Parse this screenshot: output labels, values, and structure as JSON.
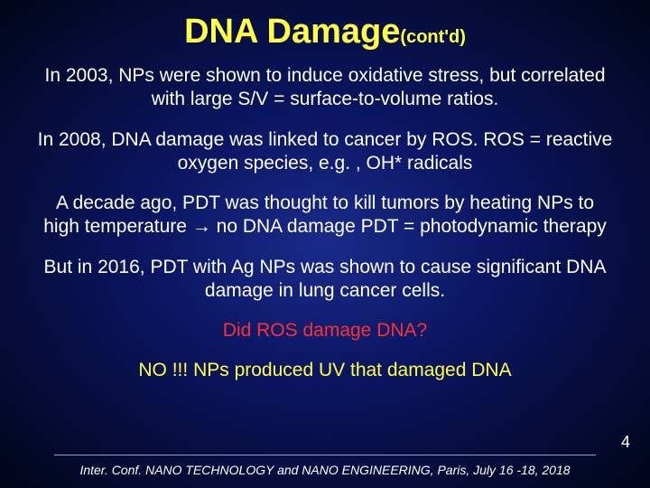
{
  "colors": {
    "background_center": "#1a2a8a",
    "background_mid": "#0a1560",
    "background_edge": "#020518",
    "title": "#ffff4a",
    "body": "#ffffff",
    "accent_red": "#ff3030",
    "accent_yellow": "#ffff4a",
    "divider": "#9aa0c8"
  },
  "fonts": {
    "title_size_pt": 38,
    "title_sub_size_pt": 20,
    "body_size_pt": 21,
    "footer_size_pt": 14,
    "slidenum_size_pt": 18,
    "family": "Arial"
  },
  "title": {
    "main": "DNA Damage",
    "sub": "(cont'd)"
  },
  "paragraphs": {
    "p1": "In 2003, NPs were shown to induce oxidative stress, but correlated with large S/V = surface-to-volume ratios.",
    "p2": "In 2008, DNA damage was linked to  cancer by ROS. ROS = reactive oxygen species, e.g. , OH* radicals",
    "p3": "A decade ago, PDT was thought to kill tumors by heating  NPs to high temperature → no DNA damage PDT = photodynamic therapy",
    "p4": "But in 2016, PDT with Ag NPs was shown to cause significant DNA damage in lung cancer cells.",
    "p5": "Did ROS damage DNA?",
    "p6": "NO !!! NPs produced UV that damaged  DNA"
  },
  "slide_number": "4",
  "footer": "Inter. Conf. NANO TECHNOLOGY and NANO ENGINEERING, Paris, July 16 -18, 2018"
}
